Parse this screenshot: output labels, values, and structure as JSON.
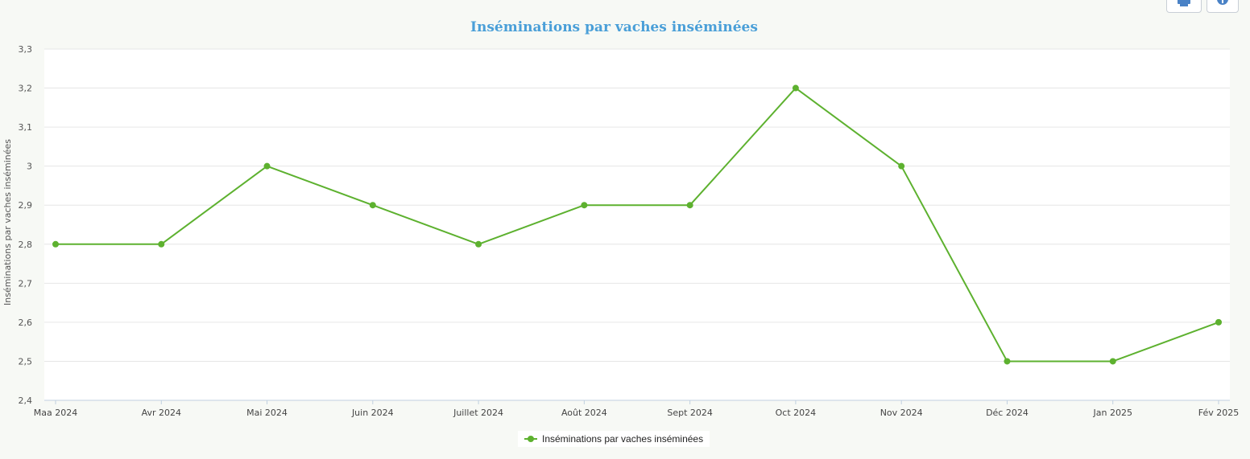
{
  "toolbar": {
    "print_icon": "printer-icon",
    "info_icon": "info-icon"
  },
  "chart_data": {
    "type": "line",
    "title": "Inséminations par vaches inséminées",
    "ylabel": "Inséminations par vaches inséminées",
    "xlabel": "",
    "categories": [
      "Maa 2024",
      "Avr 2024",
      "Mai 2024",
      "Juin 2024",
      "Juillet 2024",
      "Août 2024",
      "Sept 2024",
      "Oct 2024",
      "Nov 2024",
      "Déc 2024",
      "Jan 2025",
      "Fév 2025"
    ],
    "series": [
      {
        "name": "Inséminations par vaches inséminées",
        "color": "#5db12f",
        "values": [
          2.8,
          2.8,
          3.0,
          2.9,
          2.8,
          2.9,
          2.9,
          3.2,
          3.0,
          2.5,
          2.5,
          2.6
        ]
      }
    ],
    "ylim": [
      2.4,
      3.3
    ],
    "yticks": [
      "2,4",
      "2,5",
      "2,6",
      "2,7",
      "2,8",
      "2,9",
      "3",
      "3,1",
      "3,2",
      "3,3"
    ],
    "grid": true,
    "legend": "bottom-center"
  }
}
